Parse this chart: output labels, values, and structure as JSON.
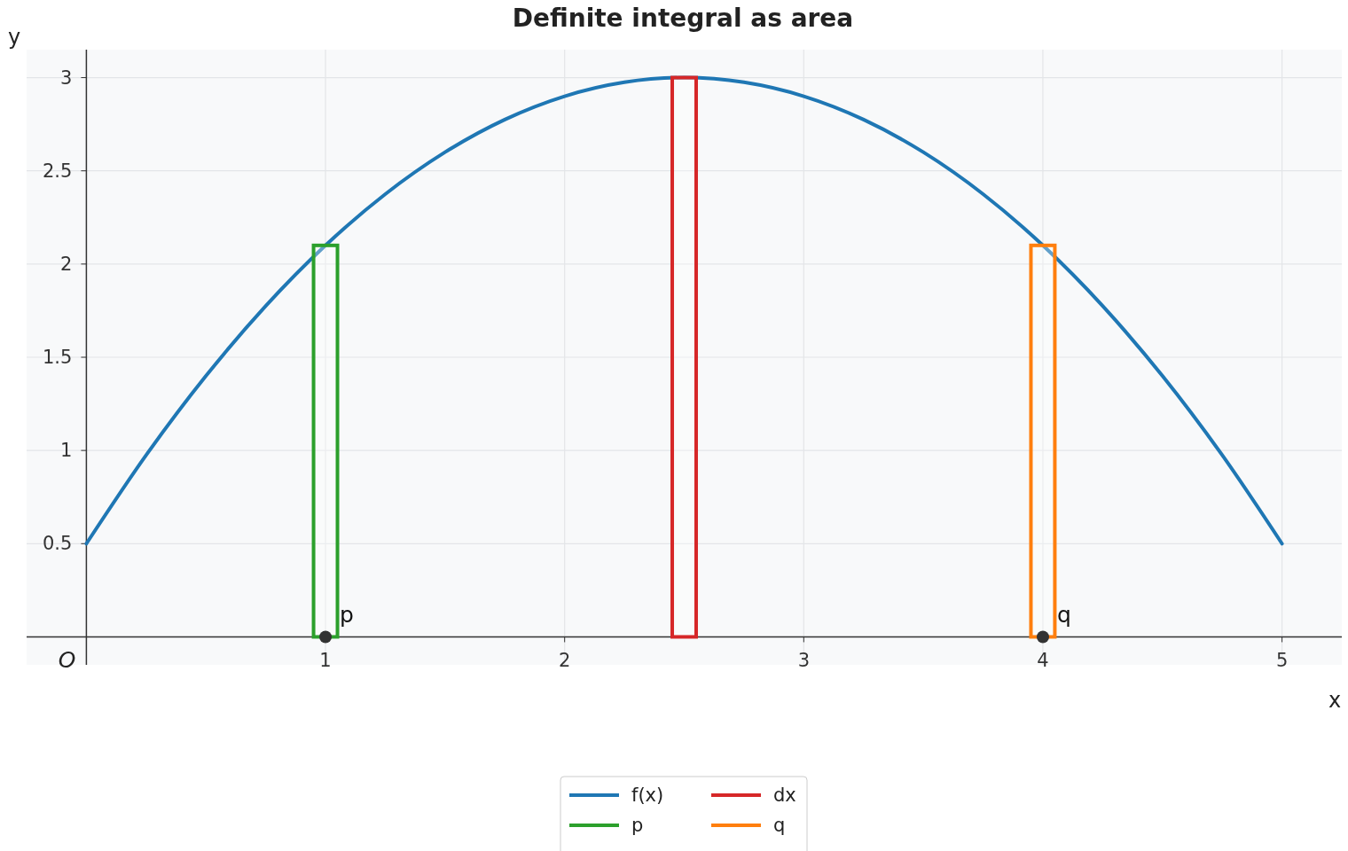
{
  "chart_data": {
    "type": "line",
    "title": "Definite integral as area",
    "xlabel": "x",
    "ylabel": "y",
    "xlim": [
      -0.25,
      5.25
    ],
    "ylim": [
      -0.15,
      3.15
    ],
    "xticks": [
      1,
      2,
      3,
      4,
      5
    ],
    "yticks": [
      0.5,
      1,
      1.5,
      2,
      2.5,
      3
    ],
    "grid": true,
    "legend": "bottom",
    "series": [
      {
        "name": "f(x)",
        "color": "#1f77b4",
        "x": [
          0,
          0.25,
          0.5,
          0.75,
          1,
          1.25,
          1.5,
          1.75,
          2,
          2.25,
          2.5,
          2.75,
          3,
          3.25,
          3.5,
          3.75,
          4,
          4.25,
          4.5,
          4.75,
          5
        ],
        "values": [
          0.5,
          0.975,
          1.4,
          1.775,
          2.1,
          2.375,
          2.6,
          2.775,
          2.9,
          2.975,
          3,
          2.975,
          2.9,
          2.775,
          2.6,
          2.375,
          2.1,
          1.775,
          1.4,
          0.975,
          0.5
        ]
      },
      {
        "type": "bar",
        "name": "p",
        "color": "#2ca02c",
        "x": [
          1
        ],
        "values": [
          2.1
        ]
      },
      {
        "type": "bar",
        "name": "dx",
        "color": "#d62728",
        "x": [
          2.5
        ],
        "values": [
          3
        ]
      },
      {
        "type": "bar",
        "name": "q",
        "color": "#ff7f0e",
        "x": [
          4
        ],
        "values": [
          2.1
        ]
      },
      {
        "type": "scatter",
        "color": "#333333",
        "x": [
          1,
          4
        ],
        "values": [
          0,
          0
        ]
      }
    ],
    "annotations": [
      {
        "text": "p",
        "x": 1,
        "y": 0
      },
      {
        "text": "q",
        "x": 4,
        "y": 0
      },
      "O"
    ]
  }
}
